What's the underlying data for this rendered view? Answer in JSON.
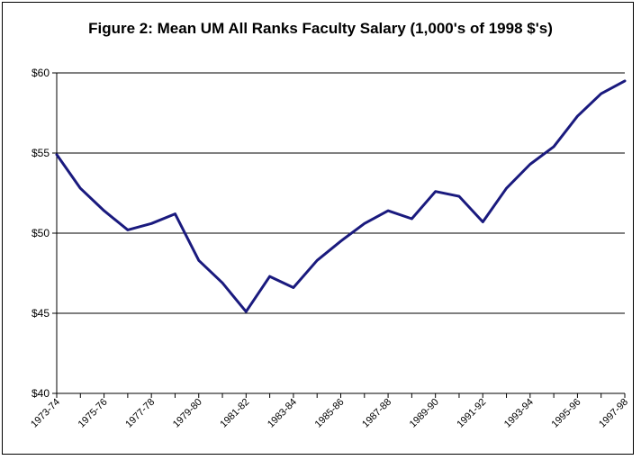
{
  "chart_data": {
    "type": "line",
    "title": "Figure 2:  Mean UM All Ranks Faculty Salary (1,000's of 1998 $'s)",
    "xlabel": "",
    "ylabel": "",
    "ylim": [
      40,
      60
    ],
    "y_ticks": [
      "$40",
      "$45",
      "$50",
      "$55",
      "$60"
    ],
    "y_tick_values": [
      40,
      45,
      50,
      55,
      60
    ],
    "grid": "horizontal",
    "line_color": "#1a1a7e",
    "categories": [
      "1973-74",
      "1974-75",
      "1975-76",
      "1976-77",
      "1977-78",
      "1978-79",
      "1979-80",
      "1980-81",
      "1981-82",
      "1982-83",
      "1983-84",
      "1984-85",
      "1985-86",
      "1986-87",
      "1987-88",
      "1988-89",
      "1989-90",
      "1990-91",
      "1991-92",
      "1992-93",
      "1993-94",
      "1994-95",
      "1995-96",
      "1996-97",
      "1997-98"
    ],
    "labeled_categories": [
      "1973-74",
      "1975-76",
      "1977-78",
      "1979-80",
      "1981-82",
      "1983-84",
      "1985-86",
      "1987-88",
      "1989-90",
      "1991-92",
      "1993-94",
      "1995-96",
      "1997-98"
    ],
    "series": [
      {
        "values": [
          54.9,
          52.8,
          51.4,
          50.2,
          50.6,
          51.2,
          48.3,
          46.9,
          45.1,
          47.3,
          46.6,
          48.3,
          49.5,
          50.6,
          51.4,
          50.9,
          52.6,
          52.3,
          50.7,
          52.8,
          54.3,
          55.4,
          57.3,
          58.7,
          59.5
        ]
      }
    ]
  }
}
